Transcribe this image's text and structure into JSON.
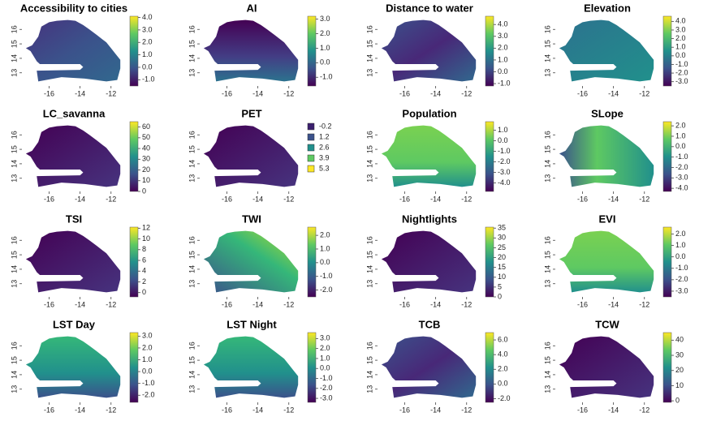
{
  "chart_data": [
    {
      "type": "raster",
      "title": "Accessibility to cities",
      "xlim": [
        -17.6,
        -11.2
      ],
      "ylim": [
        12.2,
        16.8
      ],
      "xticks": [
        -16,
        -14,
        -12
      ],
      "yticks": [
        13,
        14,
        15,
        16
      ],
      "clim": [
        -1.5,
        4.1
      ],
      "cticks": [
        {
          "value": 4,
          "label": "4.0"
        },
        {
          "value": 3,
          "label": "3.0"
        },
        {
          "value": 2,
          "label": "2.0"
        },
        {
          "value": 1,
          "label": "1.0"
        },
        {
          "value": 0,
          "label": "0.0"
        },
        {
          "value": -1,
          "label": "-1.0"
        }
      ]
    },
    {
      "type": "raster",
      "title": "AI",
      "xlim": [
        -17.6,
        -11.2
      ],
      "ylim": [
        12.2,
        16.8
      ],
      "xticks": [
        -16,
        -14,
        -12
      ],
      "yticks": [
        13,
        14,
        15,
        16
      ],
      "clim": [
        -1.6,
        3.2
      ],
      "cticks": [
        {
          "value": 3,
          "label": "3.0"
        },
        {
          "value": 2,
          "label": "2.0"
        },
        {
          "value": 1,
          "label": "1.0"
        },
        {
          "value": 0,
          "label": "0.0"
        },
        {
          "value": -1,
          "label": "-1.0"
        }
      ]
    },
    {
      "type": "raster",
      "title": "Distance to water",
      "xlim": [
        -17.6,
        -11.2
      ],
      "ylim": [
        12.2,
        16.8
      ],
      "xticks": [
        -16,
        -14,
        -12
      ],
      "yticks": [
        13,
        14,
        15,
        16
      ],
      "clim": [
        -1.2,
        4.7
      ],
      "cticks": [
        {
          "value": 4,
          "label": "4.0"
        },
        {
          "value": 3,
          "label": "3.0"
        },
        {
          "value": 2,
          "label": "2.0"
        },
        {
          "value": 1,
          "label": "1.0"
        },
        {
          "value": 0,
          "label": "0.0"
        },
        {
          "value": -1,
          "label": "-1.0"
        }
      ]
    },
    {
      "type": "raster",
      "title": "Elevation",
      "xlim": [
        -17.6,
        -11.2
      ],
      "ylim": [
        12.2,
        16.8
      ],
      "xticks": [
        -16,
        -14,
        -12
      ],
      "yticks": [
        13,
        14,
        15,
        16
      ],
      "clim": [
        -3.5,
        4.6
      ],
      "cticks": [
        {
          "value": 4,
          "label": "4.0"
        },
        {
          "value": 3,
          "label": "3.0"
        },
        {
          "value": 2,
          "label": "2.0"
        },
        {
          "value": 1,
          "label": "1.0"
        },
        {
          "value": 0,
          "label": "0.0"
        },
        {
          "value": -1,
          "label": "-1.0"
        },
        {
          "value": -2,
          "label": "-2.0"
        },
        {
          "value": -3,
          "label": "-3.0"
        }
      ]
    },
    {
      "type": "raster",
      "title": "LC_savanna",
      "xlim": [
        -17.6,
        -11.2
      ],
      "ylim": [
        12.2,
        16.8
      ],
      "xticks": [
        -16,
        -14,
        -12
      ],
      "yticks": [
        13,
        14,
        15,
        16
      ],
      "clim": [
        0,
        65
      ],
      "cticks": [
        60,
        50,
        40,
        30,
        20,
        10,
        0
      ]
    },
    {
      "type": "categorical",
      "title": "PET",
      "xlim": [
        -17.6,
        -11.2
      ],
      "ylim": [
        12.2,
        16.8
      ],
      "xticks": [
        -16,
        -14,
        -12
      ],
      "yticks": [
        13,
        14,
        15,
        16
      ],
      "categories": [
        -0.2,
        1.2,
        2.6,
        3.9,
        5.3
      ],
      "colors": [
        "#3b1f6e",
        "#3b528b",
        "#21908c",
        "#5ec962",
        "#fde725"
      ]
    },
    {
      "type": "raster",
      "title": "Population",
      "xlim": [
        -17.6,
        -11.2
      ],
      "ylim": [
        12.2,
        16.8
      ],
      "xticks": [
        -16,
        -14,
        -12
      ],
      "yticks": [
        13,
        14,
        15,
        16
      ],
      "clim": [
        -4.8,
        1.8
      ],
      "cticks": [
        {
          "value": 1,
          "label": "1.0"
        },
        {
          "value": 0,
          "label": "0.0"
        },
        {
          "value": -1,
          "label": "-1.0"
        },
        {
          "value": -2,
          "label": "-2.0"
        },
        {
          "value": -3,
          "label": "-3.0"
        },
        {
          "value": -4,
          "label": "-4.0"
        }
      ]
    },
    {
      "type": "raster",
      "title": "SLope",
      "xlim": [
        -17.6,
        -11.2
      ],
      "ylim": [
        12.2,
        16.8
      ],
      "xticks": [
        -16,
        -14,
        -12
      ],
      "yticks": [
        13,
        14,
        15,
        16
      ],
      "clim": [
        -4.3,
        2.4
      ],
      "cticks": [
        {
          "value": 2,
          "label": "2.0"
        },
        {
          "value": 1,
          "label": "1.0"
        },
        {
          "value": 0,
          "label": "0.0"
        },
        {
          "value": -1,
          "label": "-1.0"
        },
        {
          "value": -2,
          "label": "-2.0"
        },
        {
          "value": -3,
          "label": "-3.0"
        },
        {
          "value": -4,
          "label": "-4.0"
        }
      ]
    },
    {
      "type": "raster",
      "title": "TSI",
      "xlim": [
        -17.6,
        -11.2
      ],
      "ylim": [
        12.2,
        16.8
      ],
      "xticks": [
        -16,
        -14,
        -12
      ],
      "yticks": [
        13,
        14,
        15,
        16
      ],
      "clim": [
        -0.8,
        12.2
      ],
      "cticks": [
        12,
        10,
        8,
        6,
        4,
        2,
        0
      ]
    },
    {
      "type": "raster",
      "title": "TWI",
      "xlim": [
        -17.6,
        -11.2
      ],
      "ylim": [
        12.2,
        16.8
      ],
      "xticks": [
        -16,
        -14,
        -12
      ],
      "yticks": [
        13,
        14,
        15,
        16
      ],
      "clim": [
        -2.5,
        2.6
      ],
      "cticks": [
        {
          "value": 2,
          "label": "2.0"
        },
        {
          "value": 1,
          "label": "1.0"
        },
        {
          "value": 0,
          "label": "0.0"
        },
        {
          "value": -1,
          "label": "-1.0"
        },
        {
          "value": -2,
          "label": "-2.0"
        }
      ]
    },
    {
      "type": "raster",
      "title": "Nightlights",
      "xlim": [
        -17.6,
        -11.2
      ],
      "ylim": [
        12.2,
        16.8
      ],
      "xticks": [
        -16,
        -14,
        -12
      ],
      "yticks": [
        13,
        14,
        15,
        16
      ],
      "clim": [
        0,
        35.5
      ],
      "cticks": [
        35,
        30,
        25,
        20,
        15,
        10,
        5,
        0
      ]
    },
    {
      "type": "raster",
      "title": "EVI",
      "xlim": [
        -17.6,
        -11.2
      ],
      "ylim": [
        12.2,
        16.8
      ],
      "xticks": [
        -16,
        -14,
        -12
      ],
      "yticks": [
        13,
        14,
        15,
        16
      ],
      "clim": [
        -3.5,
        2.6
      ],
      "cticks": [
        {
          "value": 2,
          "label": "2.0"
        },
        {
          "value": 1,
          "label": "1.0"
        },
        {
          "value": 0,
          "label": "0.0"
        },
        {
          "value": -1,
          "label": "-1.0"
        },
        {
          "value": -2,
          "label": "-2.0"
        },
        {
          "value": -3,
          "label": "-3.0"
        }
      ]
    },
    {
      "type": "raster",
      "title": "LST Day",
      "xlim": [
        -17.6,
        -11.2
      ],
      "ylim": [
        12.2,
        16.8
      ],
      "xticks": [
        -16,
        -14,
        -12
      ],
      "yticks": [
        13,
        14,
        15,
        16
      ],
      "clim": [
        -2.6,
        3.3
      ],
      "cticks": [
        {
          "value": 3,
          "label": "3.0"
        },
        {
          "value": 2,
          "label": "2.0"
        },
        {
          "value": 1,
          "label": "1.0"
        },
        {
          "value": 0,
          "label": "0.0"
        },
        {
          "value": -1,
          "label": "-1.0"
        },
        {
          "value": -2,
          "label": "-2.0"
        }
      ]
    },
    {
      "type": "raster",
      "title": "LST Night",
      "xlim": [
        -17.6,
        -11.2
      ],
      "ylim": [
        12.2,
        16.8
      ],
      "xticks": [
        -16,
        -14,
        -12
      ],
      "yticks": [
        13,
        14,
        15,
        16
      ],
      "clim": [
        -3.4,
        3.6
      ],
      "cticks": [
        {
          "value": 3,
          "label": "3.0"
        },
        {
          "value": 2,
          "label": "2.0"
        },
        {
          "value": 1,
          "label": "1.0"
        },
        {
          "value": 0,
          "label": "0.0"
        },
        {
          "value": -1,
          "label": "-1.0"
        },
        {
          "value": -2,
          "label": "-2.0"
        },
        {
          "value": -3,
          "label": "-3.0"
        }
      ]
    },
    {
      "type": "raster",
      "title": "TCB",
      "xlim": [
        -17.6,
        -11.2
      ],
      "ylim": [
        12.2,
        16.8
      ],
      "xticks": [
        -16,
        -14,
        -12
      ],
      "yticks": [
        13,
        14,
        15,
        16
      ],
      "clim": [
        -2.5,
        7
      ],
      "cticks": [
        {
          "value": 6,
          "label": "6.0"
        },
        {
          "value": 4,
          "label": "4.0"
        },
        {
          "value": 2,
          "label": "2.0"
        },
        {
          "value": 0,
          "label": "0.0"
        },
        {
          "value": -2,
          "label": "-2.0"
        }
      ]
    },
    {
      "type": "raster",
      "title": "TCW",
      "xlim": [
        -17.6,
        -11.2
      ],
      "ylim": [
        12.2,
        16.8
      ],
      "xticks": [
        -16,
        -14,
        -12
      ],
      "yticks": [
        13,
        14,
        15,
        16
      ],
      "clim": [
        -1,
        45
      ],
      "cticks": [
        40,
        30,
        20,
        10,
        0
      ]
    }
  ]
}
